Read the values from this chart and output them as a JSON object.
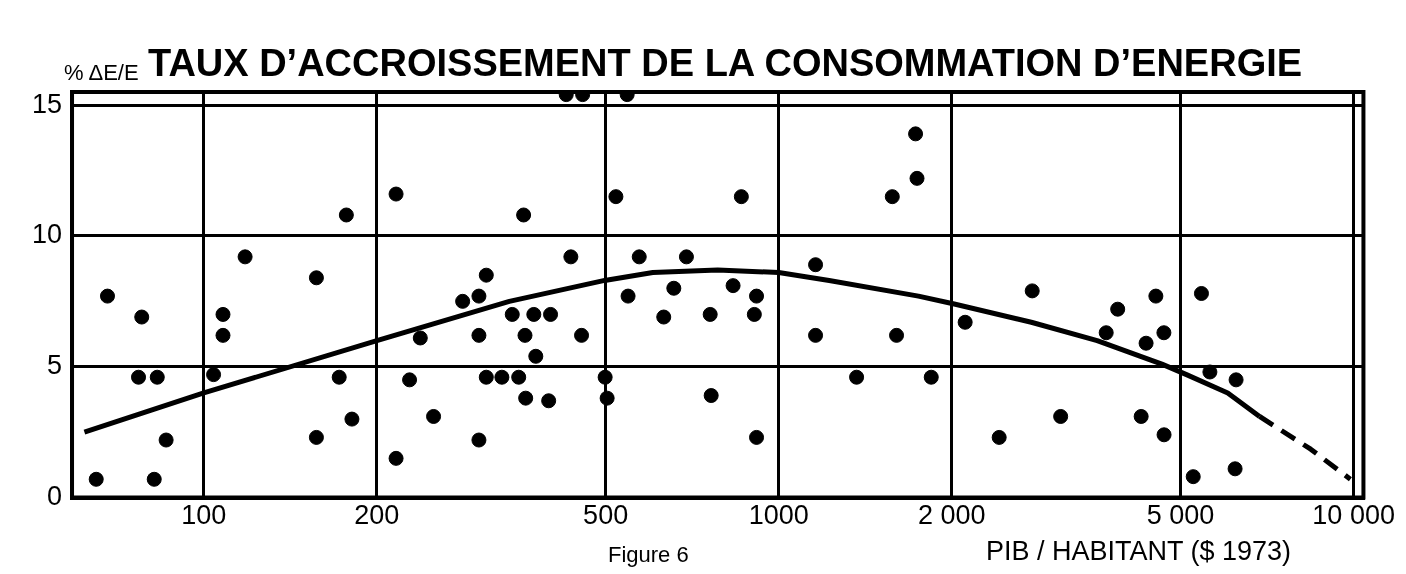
{
  "chart_data": {
    "type": "scatter",
    "title": "TAUX D’ACCROISSEMENT DE LA CONSOMMATION D’ENERGIE",
    "ylabel": "% ΔE/E",
    "xlabel": "PIB / HABITANT ($ 1973)",
    "annotations": [
      "Figure 6"
    ],
    "log": "x",
    "xlim": [
      59,
      10400
    ],
    "xticks": [
      100,
      200,
      500,
      1000,
      {
        "value": 2000,
        "label": "2 000"
      },
      {
        "value": 5000,
        "label": "5 000"
      },
      {
        "value": 10000,
        "label": "10 000"
      }
    ],
    "ylim": [
      0,
      15.5
    ],
    "yticks": [
      0,
      5,
      10,
      15
    ],
    "grid": true,
    "legend": false,
    "marker": "circle",
    "series": [
      {
        "color": "#000000",
        "x": [
          68,
          78,
          77,
          83,
          104,
          108,
          108,
          118,
          157,
          177,
          216,
          86,
          65,
          82,
          172,
          181,
          157,
          216,
          228,
          238,
          251,
          282,
          301,
          310,
          301,
          301,
          310,
          330,
          427,
          456,
          545,
          360,
          521,
          861,
          1576,
          1730,
          1740,
          435,
          572,
          691,
          1159,
          344,
          375,
          401,
          362,
          454,
          378,
          547,
          657,
          631,
          760,
          833,
          915,
          907,
          1159,
          1603,
          353,
          363,
          398,
          499,
          503,
          763,
          915,
          1366,
          2110,
          1842,
          2760,
          3093,
          2418,
          3887,
          3712,
          4529,
          4677,
          4355,
          4270,
          4680,
          5436,
          5623,
          6245,
          5260,
          6220
        ],
        "values": [
          7.7,
          6.9,
          4.6,
          4.6,
          4.7,
          7.0,
          6.2,
          9.2,
          8.4,
          10.8,
          11.6,
          2.2,
          0.7,
          0.7,
          4.6,
          3.0,
          2.3,
          1.5,
          4.5,
          6.1,
          3.1,
          7.5,
          7.7,
          8.5,
          6.2,
          2.2,
          4.6,
          4.6,
          15.4,
          15.4,
          15.4,
          10.8,
          11.5,
          11.5,
          11.5,
          13.9,
          12.2,
          9.2,
          9.2,
          9.2,
          8.9,
          7.0,
          7.0,
          7.0,
          6.2,
          6.2,
          5.4,
          7.7,
          8.0,
          6.9,
          7.0,
          8.1,
          7.7,
          7.0,
          6.2,
          6.2,
          4.6,
          3.8,
          3.7,
          4.6,
          3.8,
          3.9,
          2.3,
          4.6,
          6.7,
          4.6,
          7.9,
          3.1,
          2.3,
          7.2,
          6.3,
          7.7,
          6.3,
          5.9,
          3.1,
          2.4,
          7.8,
          4.8,
          4.5,
          0.8,
          1.1
        ]
      },
      {
        "type": "line",
        "color": "#000000",
        "marker": "none",
        "line_style": "solid",
        "x": [
          62,
          100,
          200,
          340,
          498,
          604,
          783,
          1000,
          1224,
          1750,
          2020,
          2750,
          3580,
          4640,
          5120,
          6040,
          6860
        ],
        "values": [
          2.5,
          4.0,
          6.0,
          7.5,
          8.3,
          8.6,
          8.7,
          8.6,
          8.3,
          7.7,
          7.4,
          6.7,
          6.0,
          5.1,
          4.7,
          4.0,
          3.1
        ]
      },
      {
        "type": "line",
        "color": "#000000",
        "marker": "none",
        "line_style": "dashed",
        "x": [
          6860,
          8420,
          9870
        ],
        "values": [
          3.1,
          1.85,
          0.7
        ]
      }
    ]
  }
}
